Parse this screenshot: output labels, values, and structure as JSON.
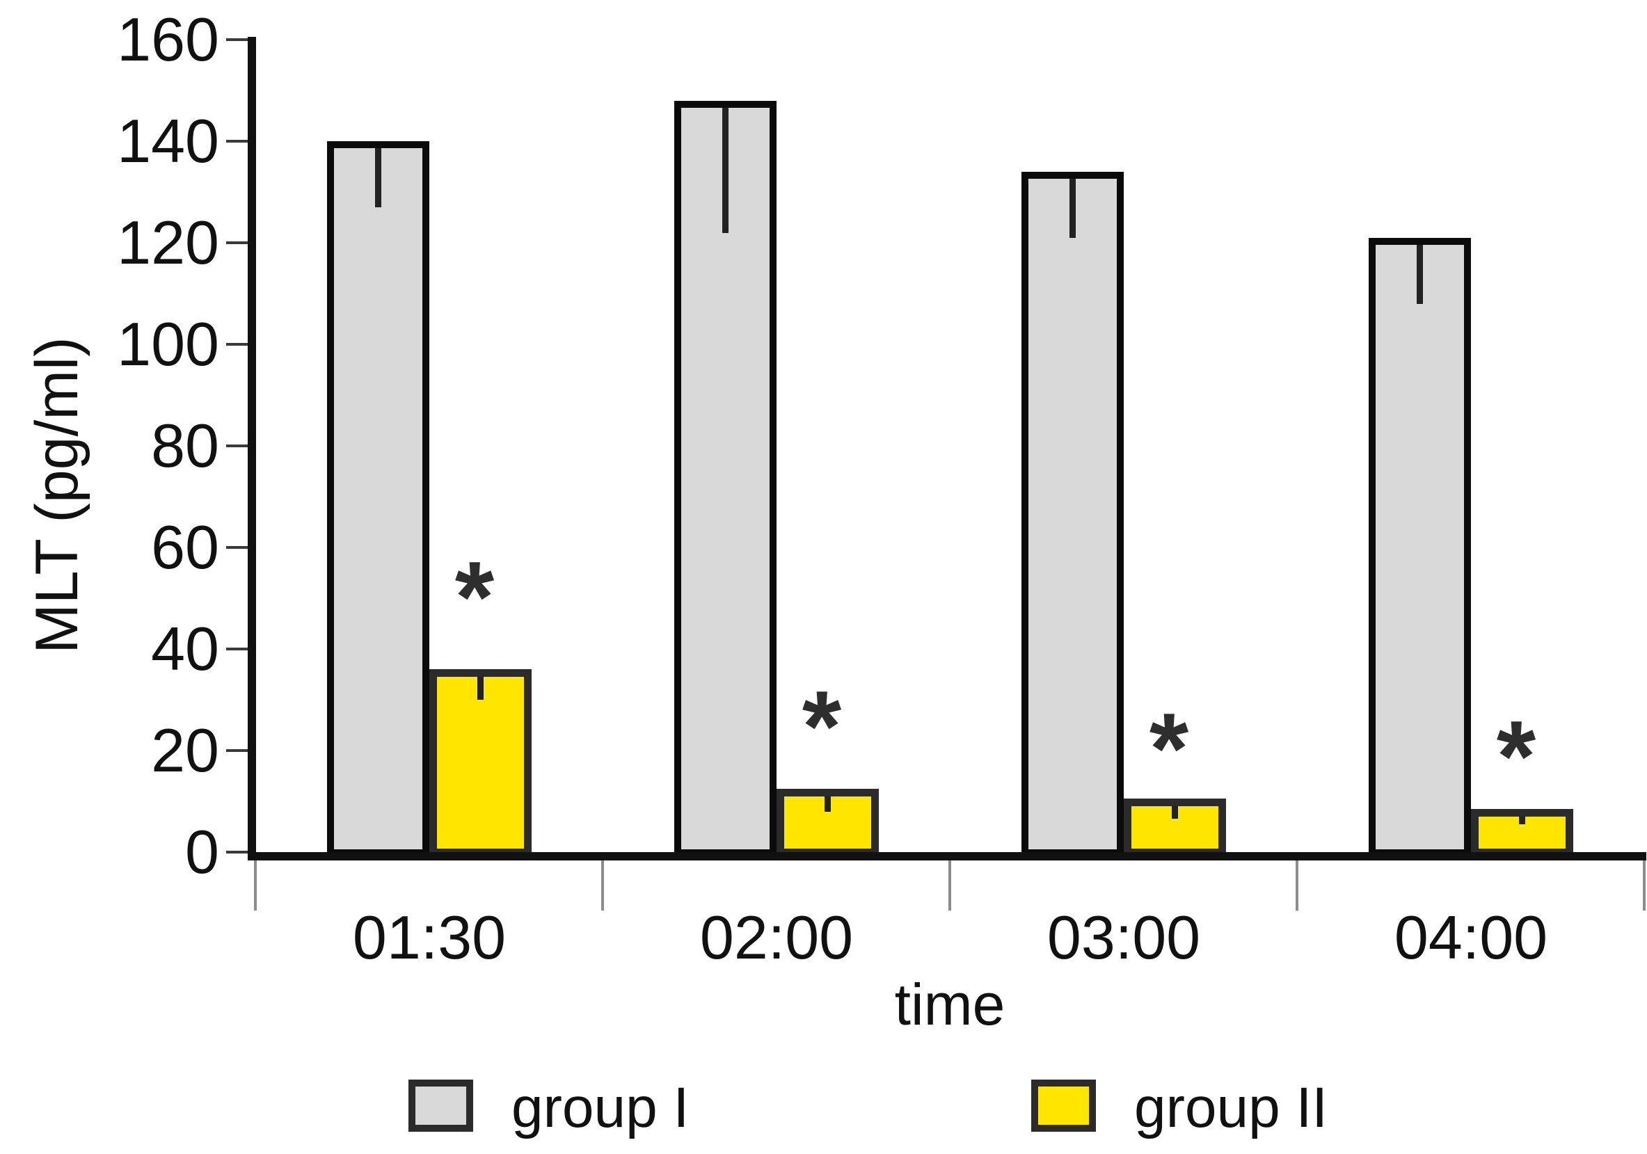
{
  "chart_data": {
    "type": "bar",
    "title": "",
    "xlabel": "time",
    "ylabel": "MLT (pg/ml)",
    "categories": [
      "01:30",
      "02:00",
      "03:00",
      "04:00"
    ],
    "series": [
      {
        "name": "group I",
        "color": "#d9d9d9",
        "border_color": "#0b0b0b",
        "values": [
          140,
          148,
          134,
          121
        ],
        "error_minus": [
          13,
          26,
          13,
          13
        ]
      },
      {
        "name": "group II",
        "color": "#ffe500",
        "border_color": "#2b2b2b",
        "values": [
          36,
          12.5,
          10.5,
          8.5
        ],
        "error_minus": [
          6,
          4.5,
          4,
          3
        ],
        "significance": [
          "*",
          "*",
          "*",
          "*"
        ]
      }
    ],
    "ylim": [
      0,
      160
    ],
    "ytick_step": 20,
    "yticks": [
      0,
      20,
      40,
      60,
      80,
      100,
      120,
      140,
      160
    ],
    "grid": false,
    "legend_position": "bottom",
    "error_bar_direction": "down"
  }
}
